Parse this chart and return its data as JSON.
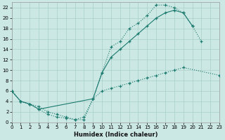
{
  "xlabel": "Humidex (Indice chaleur)",
  "bg_color": "#cce8e4",
  "grid_color": "#aacfca",
  "line_color": "#1a7a6e",
  "xlim": [
    0,
    23
  ],
  "ylim": [
    0,
    23
  ],
  "xticks": [
    0,
    1,
    2,
    3,
    4,
    5,
    6,
    7,
    8,
    9,
    10,
    11,
    12,
    13,
    14,
    15,
    16,
    17,
    18,
    19,
    20,
    21,
    22,
    23
  ],
  "yticks": [
    0,
    2,
    4,
    6,
    8,
    10,
    12,
    14,
    16,
    18,
    20,
    22
  ],
  "curve_top": {
    "x": [
      0,
      1,
      2,
      3,
      4,
      5,
      6,
      7,
      8,
      9,
      10,
      11,
      12,
      13,
      14,
      15,
      16,
      17,
      18,
      19,
      20,
      21
    ],
    "y": [
      6.0,
      4.0,
      3.5,
      3.0,
      2.0,
      1.5,
      1.0,
      0.5,
      1.0,
      4.5,
      9.5,
      14.5,
      15.5,
      18.0,
      19.0,
      20.5,
      22.5,
      22.5,
      22.0,
      21.0,
      18.5,
      15.5
    ]
  },
  "curve_mid": {
    "x": [
      0,
      1,
      2,
      3,
      9,
      10,
      11,
      12,
      13,
      14,
      15,
      16,
      17,
      18,
      19,
      20
    ],
    "y": [
      6.0,
      4.0,
      3.5,
      2.5,
      4.5,
      9.5,
      12.5,
      14.0,
      15.5,
      17.0,
      18.5,
      20.0,
      21.0,
      21.5,
      21.0,
      18.5
    ]
  },
  "curve_bot": {
    "x": [
      0,
      1,
      2,
      3,
      4,
      5,
      6,
      7,
      8,
      9,
      10,
      11,
      12,
      13,
      14,
      15,
      16,
      17,
      18,
      19,
      23
    ],
    "y": [
      6.0,
      4.0,
      3.5,
      2.5,
      1.5,
      1.0,
      0.8,
      0.5,
      0.5,
      4.5,
      6.0,
      6.5,
      7.0,
      7.5,
      8.0,
      8.5,
      9.0,
      9.5,
      10.0,
      10.5,
      9.0
    ]
  }
}
